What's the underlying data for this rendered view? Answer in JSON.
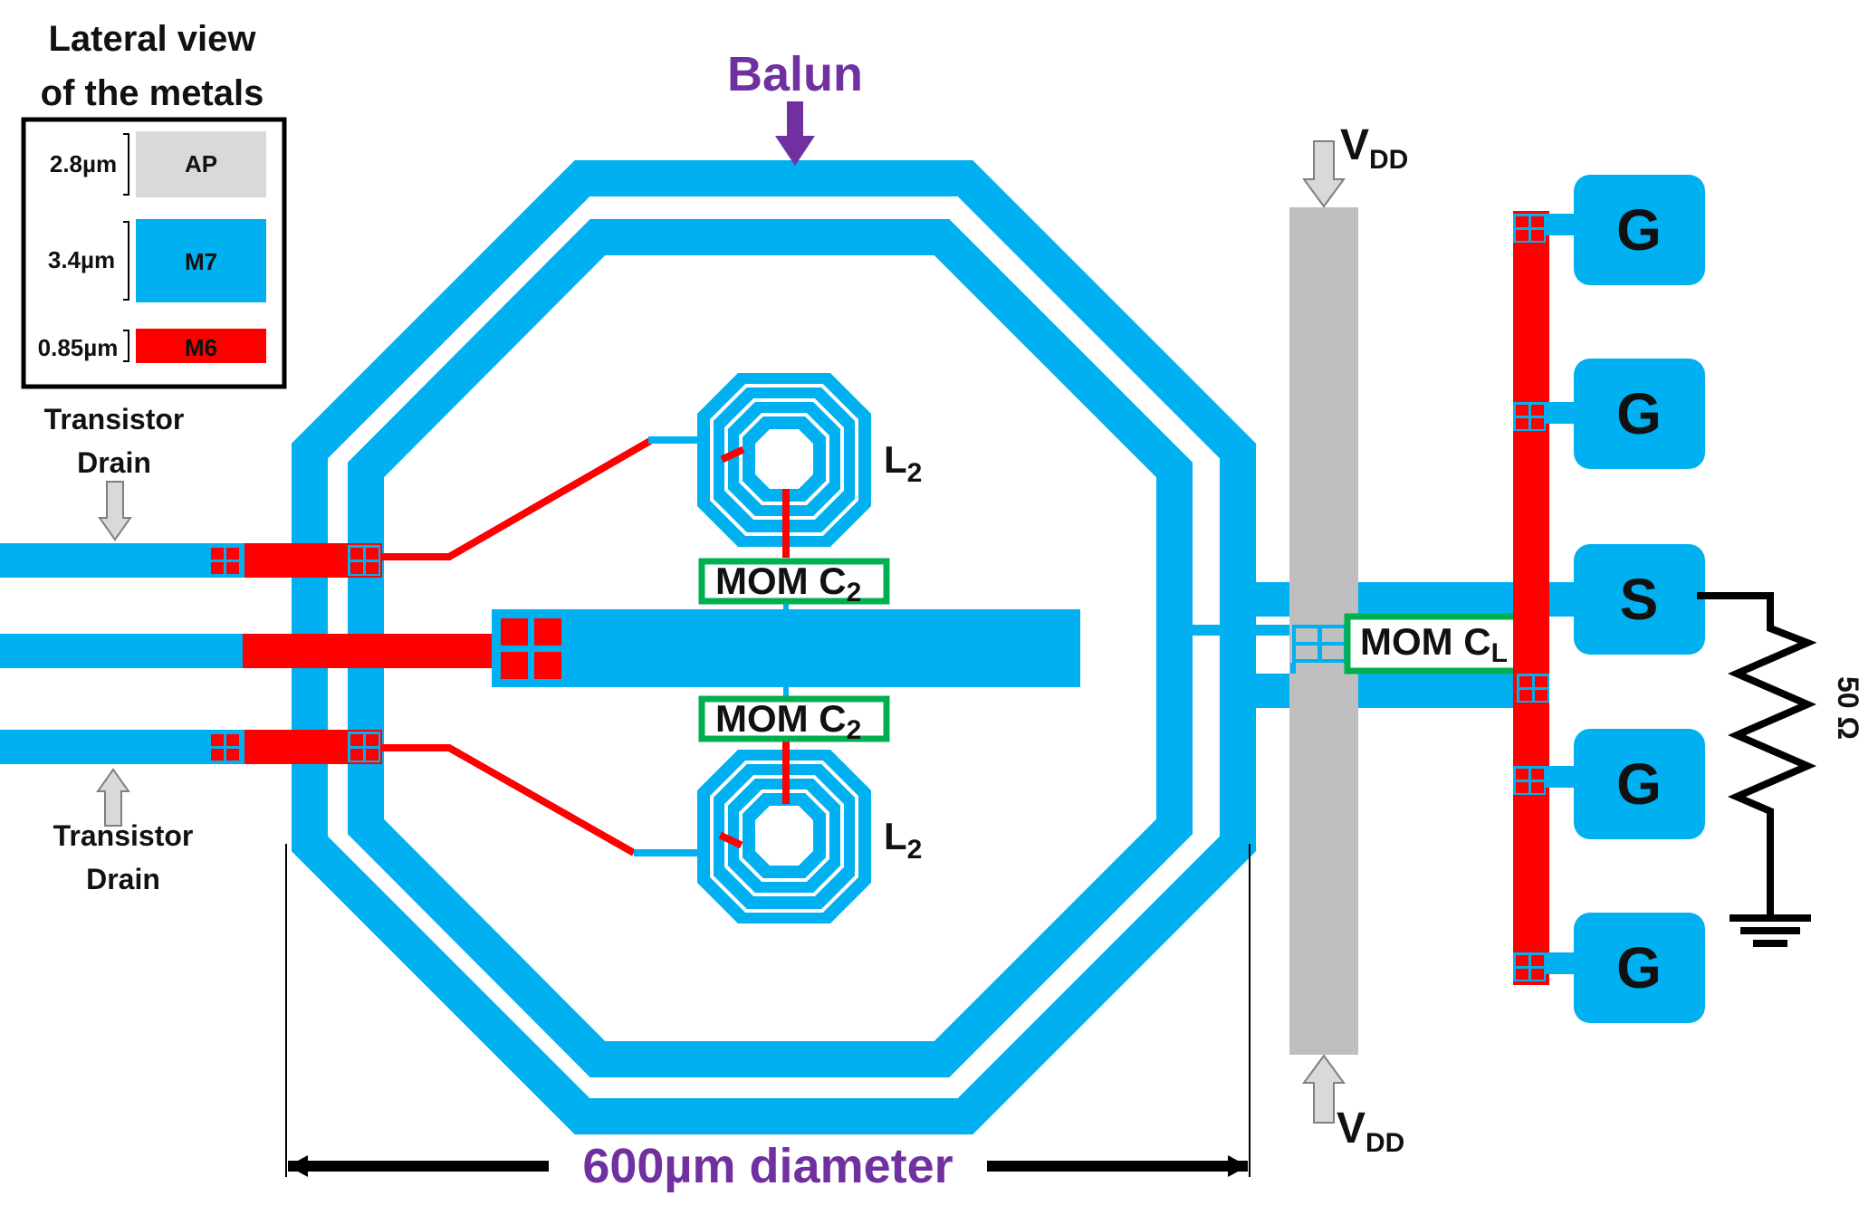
{
  "legend": {
    "title_line1": "Lateral view",
    "title_line2": "of the metals",
    "layers": [
      {
        "name": "AP",
        "thickness": "2.8µm",
        "color": "#d9d9d9"
      },
      {
        "name": "M7",
        "thickness": "3.4µm",
        "color": "#00b0f0"
      },
      {
        "name": "M6",
        "thickness": "0.85µm",
        "color": "#ff0000"
      }
    ]
  },
  "balun_label": "Balun",
  "diameter_label": "600µm diameter",
  "transistor_label_top": {
    "line1": "Transistor",
    "line2": "Drain"
  },
  "transistor_label_bottom": {
    "line1": "Transistor",
    "line2": "Drain"
  },
  "inductor_top": {
    "main": "L",
    "sub": "2"
  },
  "inductor_bottom": {
    "main": "L",
    "sub": "2"
  },
  "cap_top": {
    "main": "MOM C",
    "sub": "2"
  },
  "cap_bottom": {
    "main": "MOM C",
    "sub": "2"
  },
  "cap_load": {
    "main": "MOM C",
    "sub": "L"
  },
  "vdd_top": {
    "main": "V",
    "sub": "DD"
  },
  "vdd_bottom": {
    "main": "V",
    "sub": "DD"
  },
  "pads": [
    "G",
    "G",
    "S",
    "G",
    "G"
  ],
  "resistor_label": "50 Ω",
  "colors": {
    "m7": "#00b0f0",
    "m6": "#ff0000",
    "ap": "#bfbfbf",
    "cap_border": "#00b050",
    "accent_purple": "#7030a0"
  }
}
